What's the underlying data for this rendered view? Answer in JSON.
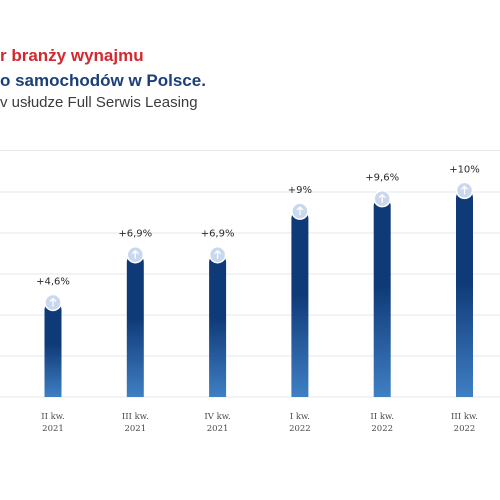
{
  "title": {
    "line1": "r branży wynajmu",
    "line2": "o samochodów w Polsce.",
    "line3": "v usłudze Full Serwis Leasing"
  },
  "colors": {
    "title_accent": "#d2282e",
    "title_main": "#1b3f79",
    "bar_top": "#0f3a78",
    "bar_bottom": "#3f7fc4",
    "arrow_circle": "#c9d8ee"
  },
  "chart_data": {
    "type": "bar",
    "categories": [
      [
        "II kw.",
        "2021"
      ],
      [
        "III kw.",
        "2021"
      ],
      [
        "IV kw.",
        "2021"
      ],
      [
        "I kw.",
        "2022"
      ],
      [
        "II kw.",
        "2022"
      ],
      [
        "III kw.",
        "2022"
      ]
    ],
    "series": [
      {
        "values": [
          4.6,
          6.9,
          6.9,
          9,
          9.6,
          10
        ]
      }
    ],
    "data_labels": [
      "+4,6%",
      "+6,9%",
      "+6,9%",
      "+9%",
      "+9,6%",
      "+10%"
    ],
    "ylim": [
      0,
      10.5
    ],
    "grid": true,
    "marker_icon": "arrow-up-icon"
  }
}
